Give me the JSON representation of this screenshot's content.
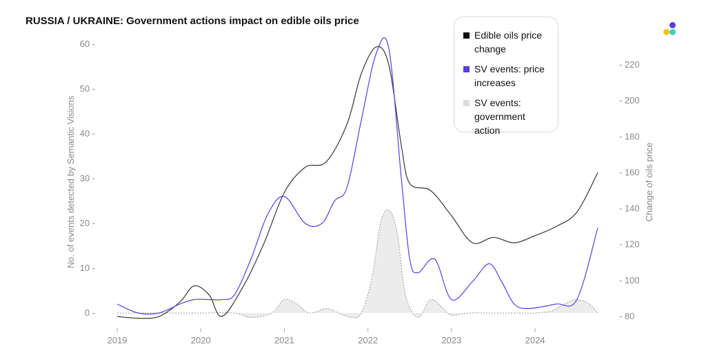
{
  "chart_data": {
    "type": "line",
    "title": "RUSSIA / UKRAINE: Government actions impact on edible oils price",
    "ylabel": "No. of events detected by Semantic Visions",
    "y2label": "Change of oils price",
    "x_ticks": [
      "2019",
      "2020",
      "2021",
      "2022",
      "2023",
      "2024"
    ],
    "x_tick_values": [
      2019,
      2020,
      2021,
      2022,
      2023,
      2024
    ],
    "xlim": [
      2019,
      2024.75
    ],
    "ylim": [
      0,
      60
    ],
    "y_ticks": [
      0,
      10,
      20,
      30,
      40,
      50,
      60
    ],
    "y2lim": [
      80,
      230
    ],
    "y2_ticks": [
      80,
      100,
      120,
      140,
      160,
      180,
      200,
      220
    ],
    "legend_position": "top-right",
    "series": [
      {
        "name": "Edible oils price change",
        "axis": "right",
        "color": "#333333",
        "style": "line",
        "x": [
          2019.0,
          2019.25,
          2019.5,
          2019.75,
          2019.92,
          2020.1,
          2020.25,
          2020.5,
          2020.75,
          2021.0,
          2021.25,
          2021.5,
          2021.75,
          2021.92,
          2022.1,
          2022.25,
          2022.4,
          2022.5,
          2022.75,
          2023.0,
          2023.25,
          2023.5,
          2023.75,
          2024.0,
          2024.25,
          2024.5,
          2024.75
        ],
        "y": [
          80,
          79,
          80,
          88,
          97,
          92,
          80,
          96,
          120,
          149,
          163,
          166,
          187,
          215,
          230,
          220,
          175,
          154,
          150,
          136,
          121,
          124,
          121,
          125,
          130,
          138,
          160
        ]
      },
      {
        "name": "SV events: price increases",
        "axis": "left",
        "color": "#5b3be8",
        "style": "line",
        "x": [
          2019.0,
          2019.25,
          2019.5,
          2019.75,
          2019.92,
          2020.1,
          2020.25,
          2020.4,
          2020.6,
          2020.8,
          2021.0,
          2021.25,
          2021.45,
          2021.6,
          2021.75,
          2021.92,
          2022.1,
          2022.25,
          2022.4,
          2022.5,
          2022.6,
          2022.8,
          2023.0,
          2023.25,
          2023.45,
          2023.6,
          2023.75,
          2023.92,
          2024.25,
          2024.5,
          2024.75
        ],
        "y": [
          2,
          0,
          0,
          2,
          3,
          3,
          3,
          4,
          12,
          22,
          26,
          20,
          20,
          25,
          28,
          43,
          58,
          59,
          30,
          12,
          9,
          12,
          3,
          7,
          11,
          7,
          2,
          1,
          2,
          3,
          19
        ]
      },
      {
        "name": "SV events: government action",
        "axis": "left",
        "color": "#9a9a9a",
        "style": "area",
        "x": [
          2019.0,
          2019.5,
          2020.0,
          2020.4,
          2020.6,
          2020.85,
          2021.0,
          2021.15,
          2021.3,
          2021.5,
          2021.65,
          2021.8,
          2021.92,
          2022.05,
          2022.15,
          2022.25,
          2022.35,
          2022.45,
          2022.6,
          2022.75,
          2022.9,
          2023.0,
          2023.2,
          2023.5,
          2023.8,
          2024.0,
          2024.2,
          2024.35,
          2024.5,
          2024.65,
          2024.75
        ],
        "y": [
          0,
          0,
          0,
          0,
          -1,
          0,
          3,
          2,
          0,
          1,
          0,
          -1,
          0,
          8,
          20,
          23,
          18,
          4,
          -1,
          3,
          1,
          -0.5,
          0,
          0,
          0,
          0,
          0.5,
          2,
          3,
          2,
          0
        ]
      }
    ]
  }
}
